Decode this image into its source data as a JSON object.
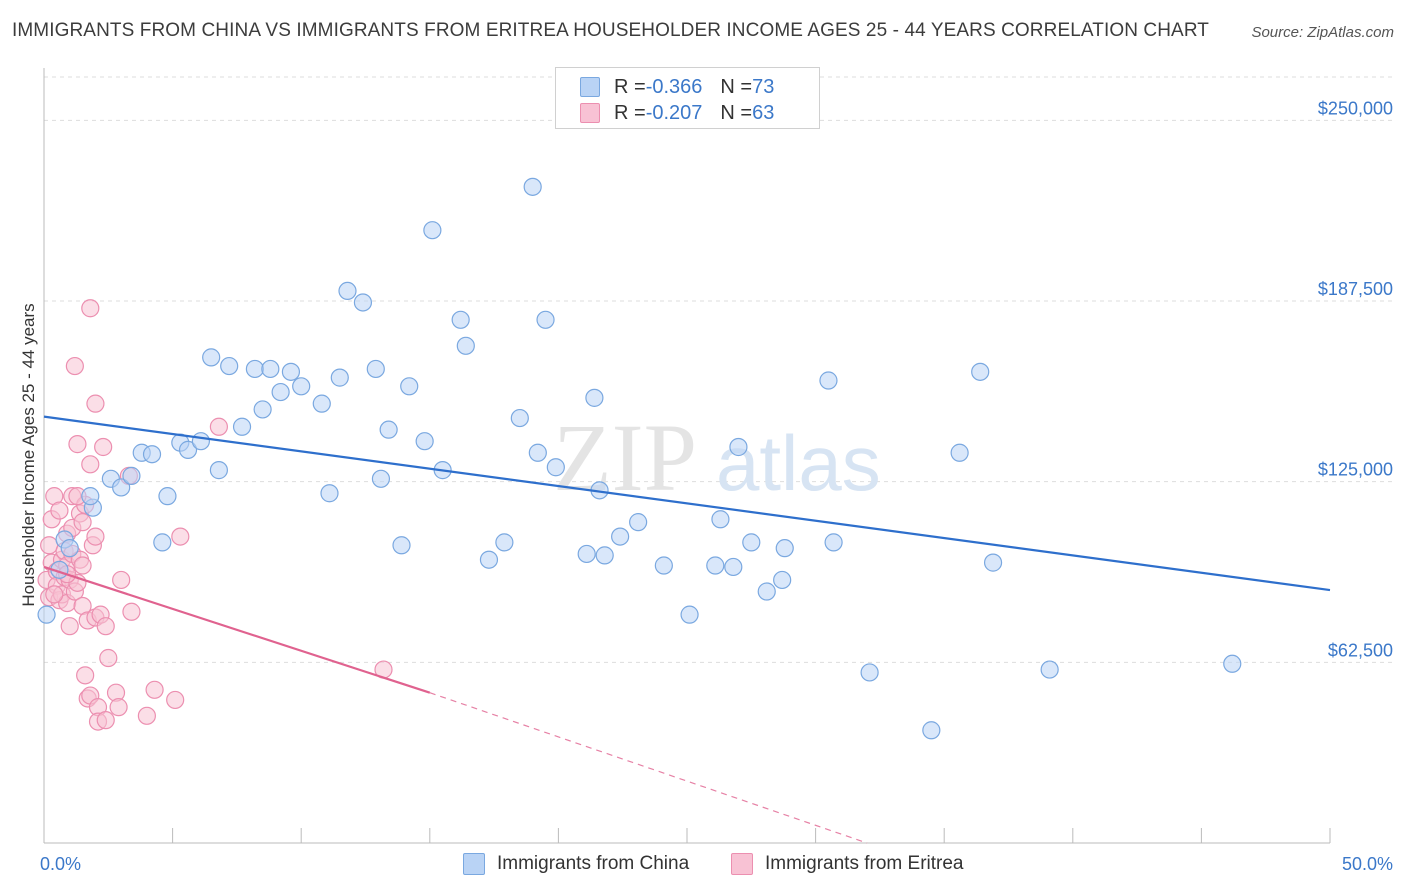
{
  "title": "IMMIGRANTS FROM CHINA VS IMMIGRANTS FROM ERITREA HOUSEHOLDER INCOME AGES 25 - 44 YEARS CORRELATION CHART",
  "source": "Source: ZipAtlas.com",
  "watermark": {
    "zip": "ZIP",
    "atlas": "atlas"
  },
  "legend": {
    "china": {
      "r_label": "R = ",
      "r_value": "-0.366",
      "n_label": "N = ",
      "n_value": "73"
    },
    "eritrea": {
      "r_label": "R = ",
      "r_value": "-0.207",
      "n_label": "N = ",
      "n_value": "63"
    }
  },
  "bottom_legend": {
    "china": "Immigrants from China",
    "eritrea": "Immigrants from Eritrea"
  },
  "colors": {
    "china_fill": "#b9d3f5",
    "china_stroke": "#7aa8e0",
    "china_line": "#2e6fcc",
    "eritrea_fill": "#f8c2d4",
    "eritrea_stroke": "#ec8fb0",
    "eritrea_line": "#e0628f",
    "tick_text": "#3b78c9",
    "grid": "#dddddd"
  },
  "chart_data": {
    "type": "scatter",
    "title": "IMMIGRANTS FROM CHINA VS IMMIGRANTS FROM ERITREA HOUSEHOLDER INCOME AGES 25 - 44 YEARS CORRELATION CHART",
    "xlabel": "",
    "ylabel": "Householder Income Ages 25 - 44 years",
    "xlim": [
      0,
      50
    ],
    "ylim": [
      0,
      265000
    ],
    "x_tick_labels": [
      "0.0%",
      "50.0%"
    ],
    "y_ticks": [
      62500,
      125000,
      187500,
      250000
    ],
    "y_tick_labels": [
      "$62,500",
      "$125,000",
      "$187,500",
      "$250,000"
    ],
    "series": [
      {
        "name": "Immigrants from China",
        "r": -0.366,
        "n": 73,
        "trend": {
          "x": [
            0,
            50
          ],
          "y": [
            147500,
            87500
          ],
          "dashed_to": null
        },
        "points": [
          [
            0.1,
            79000
          ],
          [
            0.6,
            94500
          ],
          [
            0.8,
            105000
          ],
          [
            1.0,
            102000
          ],
          [
            1.9,
            116000
          ],
          [
            1.8,
            120000
          ],
          [
            2.6,
            126000
          ],
          [
            3.0,
            123000
          ],
          [
            3.4,
            127000
          ],
          [
            3.8,
            135000
          ],
          [
            4.2,
            134500
          ],
          [
            4.8,
            120000
          ],
          [
            4.6,
            104000
          ],
          [
            5.3,
            138500
          ],
          [
            5.6,
            136000
          ],
          [
            6.1,
            139000
          ],
          [
            6.5,
            168000
          ],
          [
            6.8,
            129000
          ],
          [
            7.2,
            165000
          ],
          [
            7.7,
            144000
          ],
          [
            8.2,
            164000
          ],
          [
            8.5,
            150000
          ],
          [
            8.8,
            164000
          ],
          [
            9.2,
            156000
          ],
          [
            9.6,
            163000
          ],
          [
            10.0,
            158000
          ],
          [
            10.8,
            152000
          ],
          [
            11.1,
            121000
          ],
          [
            11.5,
            161000
          ],
          [
            11.8,
            191000
          ],
          [
            12.4,
            187000
          ],
          [
            12.9,
            164000
          ],
          [
            13.1,
            126000
          ],
          [
            13.4,
            143000
          ],
          [
            13.9,
            103000
          ],
          [
            14.2,
            158000
          ],
          [
            14.8,
            139000
          ],
          [
            15.1,
            212000
          ],
          [
            15.5,
            129000
          ],
          [
            16.2,
            181000
          ],
          [
            16.4,
            172000
          ],
          [
            17.3,
            98000
          ],
          [
            17.9,
            104000
          ],
          [
            18.5,
            147000
          ],
          [
            19.0,
            227000
          ],
          [
            19.2,
            135000
          ],
          [
            19.5,
            181000
          ],
          [
            19.9,
            130000
          ],
          [
            21.1,
            100000
          ],
          [
            21.4,
            154000
          ],
          [
            21.6,
            122000
          ],
          [
            21.8,
            99500
          ],
          [
            22.4,
            106000
          ],
          [
            23.1,
            111000
          ],
          [
            24.1,
            96000
          ],
          [
            25.1,
            79000
          ],
          [
            26.1,
            96000
          ],
          [
            26.3,
            112000
          ],
          [
            26.8,
            95500
          ],
          [
            27.5,
            104000
          ],
          [
            28.1,
            87000
          ],
          [
            28.7,
            91000
          ],
          [
            28.8,
            102000
          ],
          [
            30.5,
            160000
          ],
          [
            30.7,
            104000
          ],
          [
            32.1,
            59000
          ],
          [
            34.5,
            39000
          ],
          [
            35.6,
            135000
          ],
          [
            36.4,
            163000
          ],
          [
            36.9,
            97000
          ],
          [
            39.1,
            60000
          ],
          [
            46.2,
            62000
          ],
          [
            27.0,
            137000
          ]
        ]
      },
      {
        "name": "Immigrants from Eritrea",
        "r": -0.207,
        "n": 63,
        "trend": {
          "x": [
            0,
            15
          ],
          "y": [
            95500,
            52000
          ],
          "dashed_to": [
            32,
            0
          ]
        },
        "points": [
          [
            0.1,
            91000
          ],
          [
            0.2,
            85000
          ],
          [
            0.2,
            103000
          ],
          [
            0.3,
            97000
          ],
          [
            0.3,
            112000
          ],
          [
            0.4,
            120000
          ],
          [
            0.5,
            94000
          ],
          [
            0.5,
            89000
          ],
          [
            0.6,
            84000
          ],
          [
            0.6,
            115000
          ],
          [
            0.7,
            98000
          ],
          [
            0.7,
            86000
          ],
          [
            0.8,
            92000
          ],
          [
            0.8,
            101000
          ],
          [
            0.9,
            96000
          ],
          [
            0.9,
            107000
          ],
          [
            0.9,
            83000
          ],
          [
            1.0,
            75000
          ],
          [
            1.0,
            91000
          ],
          [
            1.1,
            100000
          ],
          [
            1.1,
            109000
          ],
          [
            1.1,
            120000
          ],
          [
            1.2,
            165000
          ],
          [
            1.2,
            87000
          ],
          [
            1.3,
            90000
          ],
          [
            1.3,
            138000
          ],
          [
            1.4,
            114000
          ],
          [
            1.4,
            98000
          ],
          [
            1.5,
            111000
          ],
          [
            1.5,
            96000
          ],
          [
            1.5,
            82000
          ],
          [
            1.6,
            117000
          ],
          [
            1.6,
            58000
          ],
          [
            1.7,
            77000
          ],
          [
            1.7,
            50000
          ],
          [
            1.8,
            51000
          ],
          [
            1.8,
            131000
          ],
          [
            1.8,
            185000
          ],
          [
            1.9,
            103000
          ],
          [
            2.0,
            152000
          ],
          [
            2.0,
            106000
          ],
          [
            2.0,
            78000
          ],
          [
            2.1,
            47000
          ],
          [
            2.1,
            42000
          ],
          [
            2.2,
            79000
          ],
          [
            2.3,
            137000
          ],
          [
            2.4,
            75000
          ],
          [
            2.4,
            42500
          ],
          [
            2.5,
            64000
          ],
          [
            2.8,
            52000
          ],
          [
            2.9,
            47000
          ],
          [
            3.0,
            91000
          ],
          [
            3.3,
            127000
          ],
          [
            3.4,
            80000
          ],
          [
            4.0,
            44000
          ],
          [
            4.3,
            53000
          ],
          [
            5.1,
            49500
          ],
          [
            5.3,
            106000
          ],
          [
            6.8,
            144000
          ],
          [
            13.2,
            60000
          ],
          [
            0.4,
            86000
          ],
          [
            0.9,
            93000
          ],
          [
            1.3,
            120000
          ]
        ]
      }
    ]
  }
}
